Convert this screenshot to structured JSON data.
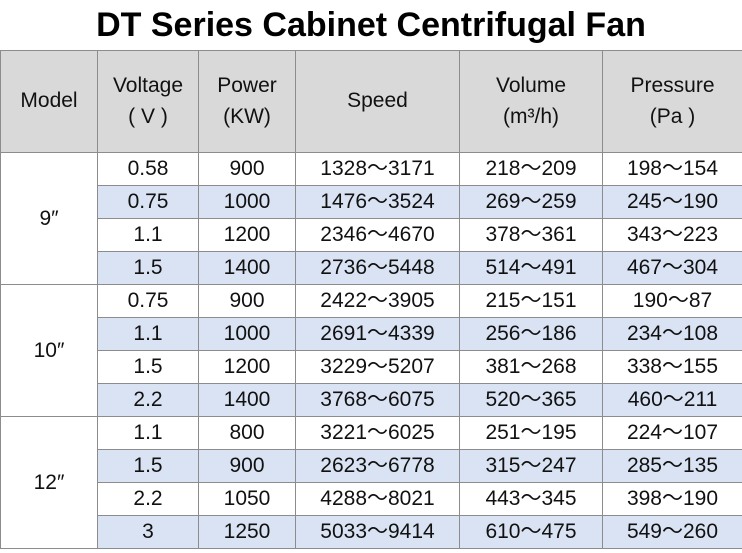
{
  "title": "DT Series Cabinet Centrifugal Fan",
  "headers": {
    "model": [
      "Model"
    ],
    "voltage": [
      "Voltage",
      "( V )"
    ],
    "power": [
      "Power",
      "(KW)"
    ],
    "speed": [
      "Speed"
    ],
    "volume": [
      "Volume",
      "(m³/h)"
    ],
    "pressure": [
      "Pressure",
      "(Pa )"
    ]
  },
  "groups": [
    {
      "model": "9″",
      "rows": [
        {
          "voltage": "0.58",
          "power": "900",
          "speed": "1328～3171",
          "volume": "218～209",
          "pressure": "198～154"
        },
        {
          "voltage": "0.75",
          "power": "1000",
          "speed": "1476～3524",
          "volume": "269～259",
          "pressure": "245～190"
        },
        {
          "voltage": "1.1",
          "power": "1200",
          "speed": "2346～4670",
          "volume": "378～361",
          "pressure": "343～223"
        },
        {
          "voltage": "1.5",
          "power": "1400",
          "speed": "2736～5448",
          "volume": "514～491",
          "pressure": "467～304"
        }
      ]
    },
    {
      "model": "10″",
      "rows": [
        {
          "voltage": "0.75",
          "power": "900",
          "speed": "2422～3905",
          "volume": "215～151",
          "pressure": "190～87"
        },
        {
          "voltage": "1.1",
          "power": "1000",
          "speed": "2691～4339",
          "volume": "256～186",
          "pressure": "234～108"
        },
        {
          "voltage": "1.5",
          "power": "1200",
          "speed": "3229～5207",
          "volume": "381～268",
          "pressure": "338～155"
        },
        {
          "voltage": "2.2",
          "power": "1400",
          "speed": "3768～6075",
          "volume": "520～365",
          "pressure": "460～211"
        }
      ]
    },
    {
      "model": "12″",
      "rows": [
        {
          "voltage": "1.1",
          "power": "800",
          "speed": "3221～6025",
          "volume": "251～195",
          "pressure": "224～107"
        },
        {
          "voltage": "1.5",
          "power": "900",
          "speed": "2623～6778",
          "volume": "315～247",
          "pressure": "285～135"
        },
        {
          "voltage": "2.2",
          "power": "1050",
          "speed": "4288～8021",
          "volume": "443～345",
          "pressure": "398～190"
        },
        {
          "voltage": "3",
          "power": "1250",
          "speed": "5033～9414",
          "volume": "610～475",
          "pressure": "549～260"
        }
      ]
    }
  ],
  "colors": {
    "header_bg": "#d9d9d9",
    "stripe_bg": "#dae3f3",
    "border": "#8c8c8c"
  }
}
